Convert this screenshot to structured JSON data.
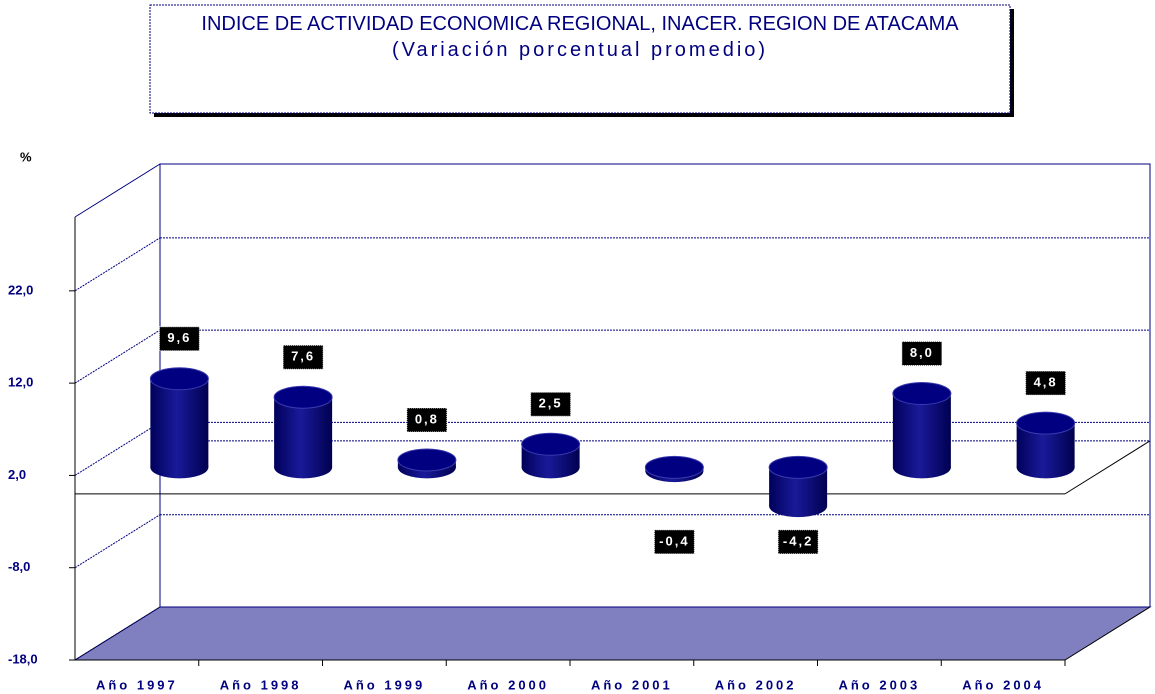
{
  "chart_data": {
    "type": "bar",
    "title": "INDICE DE ACTIVIDAD ECONOMICA REGIONAL, INACER. REGION DE ATACAMA",
    "subtitle": "(Variación porcentual promedio)",
    "y_label": "%",
    "categories": [
      "Año 1997",
      "Año 1998",
      "Año 1999",
      "Año 2000",
      "Año 2001",
      "Año 2002",
      "Año 2003",
      "Año 2004"
    ],
    "values": [
      9.6,
      7.6,
      0.8,
      2.5,
      -0.4,
      -4.2,
      8.0,
      4.8
    ],
    "value_labels": [
      "9,6",
      "7,6",
      "0,8",
      "2,5",
      "-0,4",
      "-4,2",
      "8,0",
      "4,8"
    ],
    "color": "#000080",
    "ylim": [
      -18,
      30
    ],
    "yticks": [
      {
        "value": -18,
        "label": "-18,0"
      },
      {
        "value": -8,
        "label": "-8,0"
      },
      {
        "value": 2,
        "label": "2,0"
      },
      {
        "value": 12,
        "label": "12,0"
      },
      {
        "value": 22,
        "label": "22,0"
      }
    ],
    "grid": true
  }
}
